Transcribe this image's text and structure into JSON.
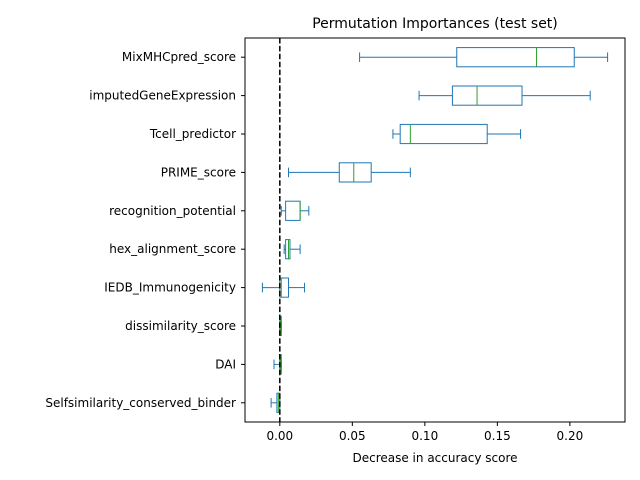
{
  "chart_data": {
    "type": "boxplot",
    "orientation": "horizontal",
    "title": "Permutation Importances (test set)",
    "xlabel": "Decrease in accuracy score",
    "ylabel": "",
    "xlim": [
      -0.024,
      0.238
    ],
    "x_ticks": [
      0.0,
      0.05,
      0.1,
      0.15,
      0.2
    ],
    "x_tick_labels": [
      "0.00",
      "0.05",
      "0.10",
      "0.15",
      "0.20"
    ],
    "reference_line": {
      "x": 0.0,
      "style": "dashed",
      "color": "#000000"
    },
    "colors": {
      "box": "#1f77b4",
      "median": "#2ca02c",
      "reference": "#000000"
    },
    "grid": false,
    "legend": "none",
    "categories": [
      "MixMHCpred_score",
      "imputedGeneExpression",
      "Tcell_predictor",
      "PRIME_score",
      "recognition_potential",
      "hex_alignment_score",
      "IEDB_Immunogenicity",
      "dissimilarity_score",
      "DAI",
      "Selfsimilarity_conserved_binder"
    ],
    "boxes": [
      {
        "label": "MixMHCpred_score",
        "whisker_low": 0.055,
        "q1": 0.122,
        "median": 0.177,
        "q3": 0.203,
        "whisker_high": 0.226
      },
      {
        "label": "imputedGeneExpression",
        "whisker_low": 0.096,
        "q1": 0.119,
        "median": 0.136,
        "q3": 0.167,
        "whisker_high": 0.214
      },
      {
        "label": "Tcell_predictor",
        "whisker_low": 0.078,
        "q1": 0.083,
        "median": 0.09,
        "q3": 0.143,
        "whisker_high": 0.166
      },
      {
        "label": "PRIME_score",
        "whisker_low": 0.006,
        "q1": 0.041,
        "median": 0.051,
        "q3": 0.063,
        "whisker_high": 0.09
      },
      {
        "label": "recognition_potential",
        "whisker_low": 0.001,
        "q1": 0.004,
        "median": 0.014,
        "q3": 0.014,
        "whisker_high": 0.02
      },
      {
        "label": "hex_alignment_score",
        "whisker_low": 0.003,
        "q1": 0.004,
        "median": 0.006,
        "q3": 0.007,
        "whisker_high": 0.014
      },
      {
        "label": "IEDB_Immunogenicity",
        "whisker_low": -0.012,
        "q1": 0.0,
        "median": 0.001,
        "q3": 0.006,
        "whisker_high": 0.017
      },
      {
        "label": "dissimilarity_score",
        "whisker_low": 0.0,
        "q1": 0.0,
        "median": 0.0005,
        "q3": 0.001,
        "whisker_high": 0.001
      },
      {
        "label": "DAI",
        "whisker_low": -0.004,
        "q1": 0.0,
        "median": 0.0005,
        "q3": 0.001,
        "whisker_high": 0.001
      },
      {
        "label": "Selfsimilarity_conserved_binder",
        "whisker_low": -0.006,
        "q1": -0.002,
        "median": -0.001,
        "q3": 0.0,
        "whisker_high": 0.0
      }
    ]
  }
}
